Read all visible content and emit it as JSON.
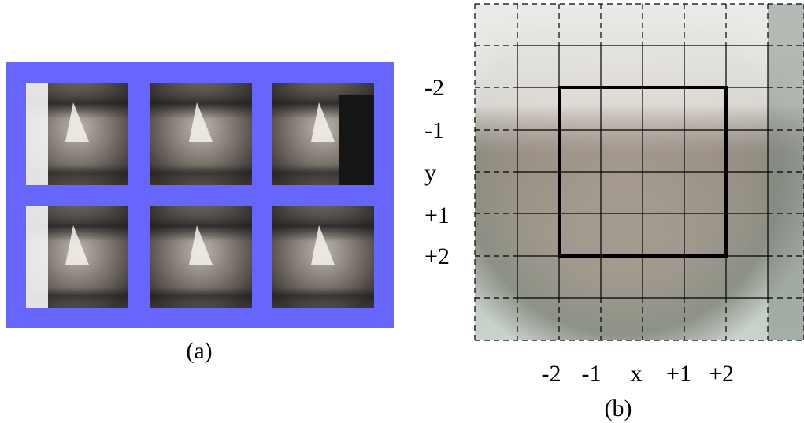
{
  "panel_a": {
    "caption": "(a)"
  },
  "panel_b": {
    "caption": "(b)",
    "row_labels": [
      "-2",
      "-1",
      "y",
      "+1",
      "+2"
    ],
    "col_labels": [
      "-2",
      "-1",
      "x",
      "+1",
      "+2"
    ]
  }
}
